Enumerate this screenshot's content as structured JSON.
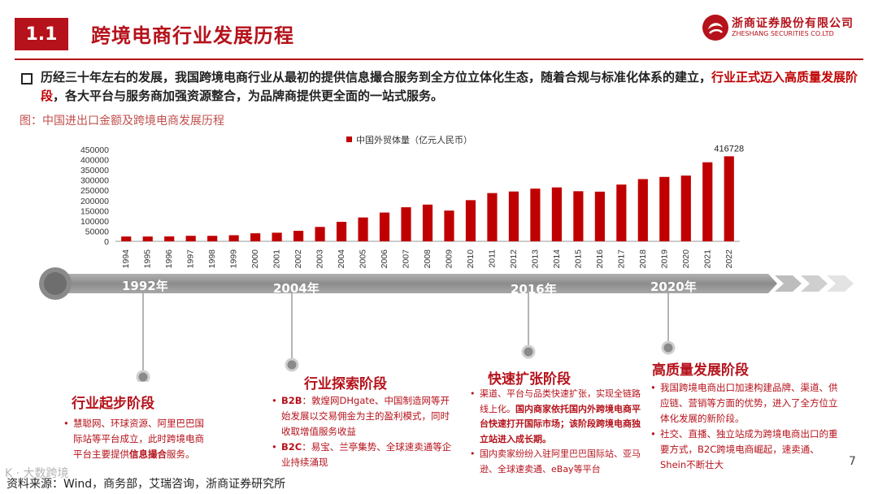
{
  "header": {
    "section_number": "1.1",
    "title": "跨境电商行业发展历程",
    "logo_name_cn": "浙商证券股份有限公司",
    "logo_name_en": "ZHESHANG SECURITIES CO.LTD"
  },
  "intro": {
    "part1": "历经三十年左右的发展，我国跨境电商行业从最初的提供信息撮合服务到全方位立体化生态，随着合规与标准化体系的建立，",
    "highlight": "行业正式迈入高质量发展阶段",
    "part2": "，各大平台与服务商加强资源整合，为品牌商提供更全面的一站式服务。"
  },
  "figure_caption": "图：中国进出口金额及跨境电商发展历程",
  "chart_data": {
    "type": "bar",
    "legend": "中国外贸体量（亿元人民币）",
    "legend_position": "top-center",
    "color": "#c00000",
    "categories": [
      "1994",
      "1995",
      "1996",
      "1997",
      "1998",
      "1999",
      "2000",
      "2001",
      "2002",
      "2003",
      "2004",
      "2005",
      "2006",
      "2007",
      "2008",
      "2009",
      "2010",
      "2011",
      "2012",
      "2013",
      "2014",
      "2015",
      "2016",
      "2017",
      "2018",
      "2019",
      "2020",
      "2021",
      "2022"
    ],
    "values": [
      23622,
      23500,
      24134,
      26967,
      26850,
      29896,
      39273,
      42184,
      51378,
      70484,
      95539,
      116922,
      140974,
      166924,
      179921,
      150648,
      201722,
      236402,
      244160,
      258169,
      264242,
      245503,
      243386,
      278099,
      305010,
      315627,
      322215,
      387392,
      416728
    ],
    "ylim": [
      0,
      450000
    ],
    "yticks": [
      0,
      50000,
      100000,
      150000,
      200000,
      250000,
      300000,
      350000,
      400000,
      450000
    ],
    "annotation": {
      "category": "2022",
      "label": "416728"
    },
    "grid": false
  },
  "timeline": {
    "labels": [
      "1992年",
      "2004年",
      "2016年",
      "2020年"
    ]
  },
  "stages": [
    {
      "title": "行业起步阶段",
      "items": [
        {
          "parts": [
            {
              "t": "慧聪网、环球资源、阿里巴巴国际站等平台成立，此时跨境电商平台主要提供"
            },
            {
              "t": "信息撮合",
              "b": true
            },
            {
              "t": "服务。"
            }
          ]
        }
      ]
    },
    {
      "title": "行业探索阶段",
      "items": [
        {
          "parts": [
            {
              "t": "B2B",
              "b": true
            },
            {
              "t": "：敦煌网DHgate、中国制造网等开始发展以交易佣金为主的盈利模式，同时收取增值服务收益"
            }
          ]
        },
        {
          "parts": [
            {
              "t": "B2C",
              "b": true
            },
            {
              "t": "：易宝、兰亭集势、全球速卖通等企业持续涌现"
            }
          ]
        }
      ]
    },
    {
      "title": "快速扩张阶段",
      "items": [
        {
          "parts": [
            {
              "t": "渠道、平台与品类快速扩张，实现全链路线上化。"
            },
            {
              "t": "国内商家依托国内外跨境电商平台快速打开国际市场；该阶段跨境电商独立站进入成长期。",
              "b": true
            }
          ]
        },
        {
          "parts": [
            {
              "t": "国内卖家纷纷入驻阿里巴巴国际站、亚马逊、全球速卖通、eBay等平台"
            }
          ]
        }
      ]
    },
    {
      "title": "高质量发展阶段",
      "items": [
        {
          "parts": [
            {
              "t": "我国跨境电商出口加速构建品牌、渠道、供应链、营销等方面的优势，进入了全方位立体化发展的新阶段。"
            }
          ]
        },
        {
          "parts": [
            {
              "t": "社交、直播、独立站成为跨境电商出口的重要方式，B2C跨境电商崛起，速卖通、Shein不断壮大"
            }
          ]
        }
      ]
    }
  ],
  "source": "资料来源：Wind，商务部，艾瑞咨询，浙商证券研究所",
  "watermark": "K · 大数跨境",
  "page_number": "7"
}
